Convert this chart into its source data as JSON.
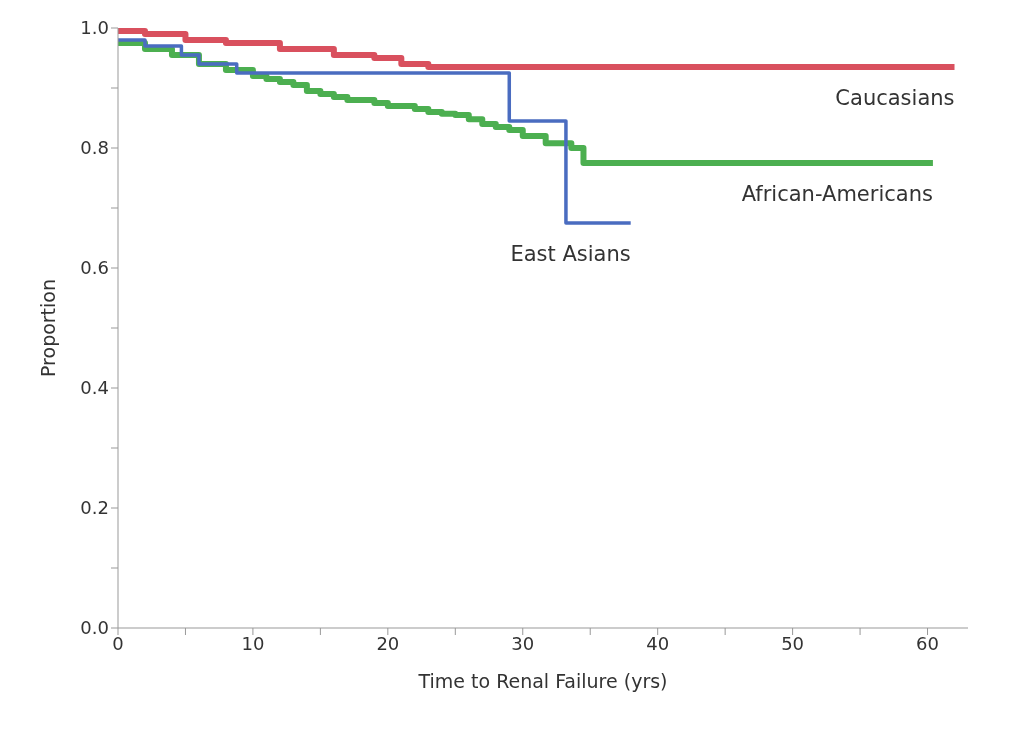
{
  "chart_data": {
    "type": "step",
    "xlabel": "Time to Renal Failure (yrs)",
    "ylabel": "Proportion",
    "xlim": [
      0,
      63
    ],
    "ylim": [
      0,
      1
    ],
    "xticks": [
      0,
      {
        "value": 5,
        "label": null
      },
      10,
      {
        "value": 15,
        "label": null
      },
      20,
      {
        "value": 25,
        "label": null
      },
      30,
      {
        "value": 35,
        "label": null
      },
      40,
      {
        "value": 45,
        "label": null
      },
      50,
      {
        "value": 55,
        "label": null
      },
      60
    ],
    "yticks": [
      "0.0",
      {
        "value": 0.1,
        "label": null
      },
      0.2,
      {
        "value": 0.3,
        "label": null
      },
      0.4,
      {
        "value": 0.5,
        "label": null
      },
      0.6,
      {
        "value": 0.7,
        "label": null
      },
      0.8,
      {
        "value": 0.9,
        "label": null
      },
      "1.0"
    ],
    "legend": false,
    "marker": "none",
    "line_style": "solid",
    "series": [
      {
        "name": "Caucasians",
        "color": "#d9505e",
        "x": [
          0,
          2,
          5,
          8,
          12,
          16,
          19,
          21,
          23,
          62
        ],
        "values": [
          0.995,
          0.99,
          0.98,
          0.975,
          0.965,
          0.955,
          0.95,
          0.94,
          0.935,
          0.935
        ]
      },
      {
        "name": "African-Americans",
        "color": "#4caf50",
        "x": [
          0,
          2,
          4,
          6,
          8,
          10,
          11,
          12,
          13,
          14,
          15,
          16,
          17,
          19,
          20,
          22,
          23,
          24,
          25,
          26,
          27,
          28,
          29,
          30,
          31.7,
          33.6,
          34.5,
          60.4
        ],
        "values": [
          0.975,
          0.965,
          0.955,
          0.94,
          0.93,
          0.92,
          0.915,
          0.91,
          0.905,
          0.895,
          0.89,
          0.885,
          0.88,
          0.875,
          0.87,
          0.865,
          0.86,
          0.857,
          0.855,
          0.848,
          0.84,
          0.835,
          0.83,
          0.82,
          0.808,
          0.8,
          0.775,
          0.775
        ]
      },
      {
        "name": "East Asians",
        "color": "#4a6cc0",
        "x": [
          0,
          2,
          4.7,
          6,
          8.8,
          29,
          33.2,
          38
        ],
        "values": [
          0.98,
          0.97,
          0.955,
          0.94,
          0.925,
          0.845,
          0.675,
          0.675
        ]
      }
    ]
  }
}
